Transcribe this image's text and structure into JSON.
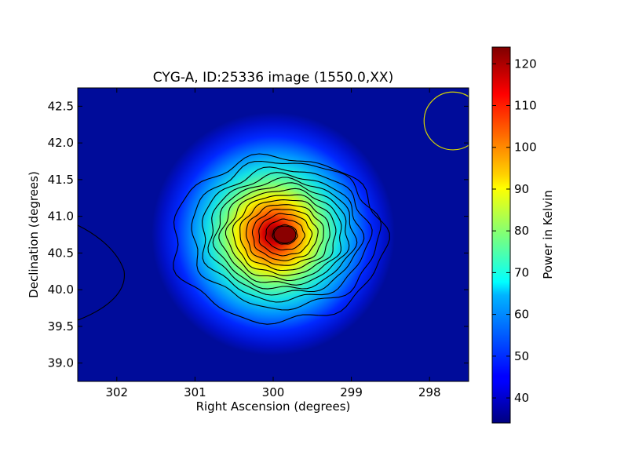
{
  "chart_data": {
    "type": "heatmap",
    "title": "CYG-A, ID:25336 image (1550.0,XX)",
    "xlabel": "Right Ascension (degrees)",
    "ylabel": "Declination (degrees)",
    "xlim": [
      302.5,
      297.5
    ],
    "ylim": [
      38.75,
      42.75
    ],
    "x_ticks": [
      302,
      301,
      300,
      299,
      298
    ],
    "x_tick_labels": [
      "302",
      "301",
      "300",
      "299",
      "298"
    ],
    "y_ticks": [
      39.0,
      39.5,
      40.0,
      40.5,
      41.0,
      41.5,
      42.0,
      42.5
    ],
    "y_tick_labels": [
      "39.0",
      "39.5",
      "40.0",
      "40.5",
      "41.0",
      "41.5",
      "42.0",
      "42.5"
    ],
    "colorbar": {
      "label": "Power in Kelvin",
      "range": [
        34,
        124
      ],
      "ticks": [
        40,
        50,
        60,
        70,
        80,
        90,
        100,
        110,
        120
      ],
      "tick_labels": [
        "40",
        "50",
        "60",
        "70",
        "80",
        "90",
        "100",
        "110",
        "120"
      ],
      "colormap": "jet"
    },
    "source": {
      "ra_center": 299.85,
      "dec_center": 40.75,
      "peak_kelvin": 123,
      "background_kelvin": 36
    },
    "beam_circle": {
      "ra_center": 297.7,
      "dec_center": 42.3,
      "radius_deg": 0.37,
      "color": "#d6d600"
    },
    "contour_color": "#000000"
  }
}
